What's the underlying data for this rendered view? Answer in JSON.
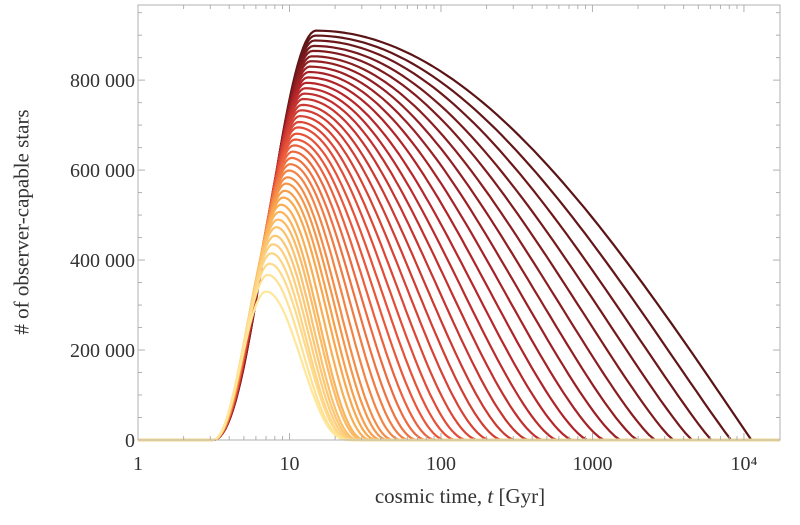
{
  "chart_data": {
    "type": "line",
    "title": "",
    "xlabel": {
      "prefix": "cosmic time, ",
      "var": "t",
      "suffix": " [Gyr]"
    },
    "ylabel": "# of observer-capable stars",
    "xscale": "log",
    "xlim": [
      1,
      17300
    ],
    "ylim": [
      0,
      967000
    ],
    "xticks": [
      1,
      10,
      100,
      1000,
      10000
    ],
    "xticklabels": [
      "1",
      "10",
      "100",
      "1000",
      "10⁴"
    ],
    "yticks": [
      0,
      200000,
      400000,
      600000,
      800000
    ],
    "yticklabels": [
      "0",
      "200 000",
      "400 000",
      "600 000",
      "800 000"
    ],
    "grid": false,
    "legend": "none",
    "frame_color": "#b0b0b0",
    "palette": [
      "#ffe79a",
      "#f9a94e",
      "#e8533a",
      "#b5252a",
      "#5a1416"
    ],
    "series_note_onset_t": 3.1,
    "series": [
      {
        "peak_t": 7.0,
        "peak_y": 330000,
        "end_t": 25
      },
      {
        "peak_t": 7.2,
        "peak_y": 367000,
        "end_t": 25
      },
      {
        "peak_t": 7.4,
        "peak_y": 392000,
        "end_t": 26
      },
      {
        "peak_t": 7.6,
        "peak_y": 415000,
        "end_t": 26
      },
      {
        "peak_t": 7.8,
        "peak_y": 435000,
        "end_t": 27
      },
      {
        "peak_t": 8.0,
        "peak_y": 454000,
        "end_t": 28
      },
      {
        "peak_t": 8.2,
        "peak_y": 473000,
        "end_t": 29
      },
      {
        "peak_t": 8.4,
        "peak_y": 490000,
        "end_t": 31
      },
      {
        "peak_t": 8.6,
        "peak_y": 507000,
        "end_t": 32
      },
      {
        "peak_t": 8.8,
        "peak_y": 523000,
        "end_t": 35
      },
      {
        "peak_t": 9.1,
        "peak_y": 539000,
        "end_t": 38
      },
      {
        "peak_t": 9.3,
        "peak_y": 554000,
        "end_t": 41
      },
      {
        "peak_t": 9.5,
        "peak_y": 570000,
        "end_t": 45
      },
      {
        "peak_t": 9.7,
        "peak_y": 584000,
        "end_t": 49
      },
      {
        "peak_t": 9.9,
        "peak_y": 599000,
        "end_t": 55
      },
      {
        "peak_t": 10.1,
        "peak_y": 613000,
        "end_t": 62
      },
      {
        "peak_t": 10.3,
        "peak_y": 627000,
        "end_t": 70
      },
      {
        "peak_t": 10.5,
        "peak_y": 641000,
        "end_t": 80
      },
      {
        "peak_t": 10.7,
        "peak_y": 655000,
        "end_t": 92
      },
      {
        "peak_t": 10.9,
        "peak_y": 668000,
        "end_t": 107
      },
      {
        "peak_t": 11.1,
        "peak_y": 681000,
        "end_t": 125
      },
      {
        "peak_t": 11.3,
        "peak_y": 695000,
        "end_t": 147
      },
      {
        "peak_t": 11.5,
        "peak_y": 707000,
        "end_t": 175
      },
      {
        "peak_t": 11.7,
        "peak_y": 720000,
        "end_t": 210
      },
      {
        "peak_t": 11.9,
        "peak_y": 733000,
        "end_t": 253
      },
      {
        "peak_t": 12.1,
        "peak_y": 745000,
        "end_t": 308
      },
      {
        "peak_t": 12.3,
        "peak_y": 758000,
        "end_t": 378
      },
      {
        "peak_t": 12.5,
        "peak_y": 770000,
        "end_t": 468
      },
      {
        "peak_t": 12.7,
        "peak_y": 782000,
        "end_t": 583
      },
      {
        "peak_t": 12.9,
        "peak_y": 794000,
        "end_t": 733
      },
      {
        "peak_t": 13.2,
        "peak_y": 806000,
        "end_t": 929
      },
      {
        "peak_t": 13.4,
        "peak_y": 818000,
        "end_t": 1190
      },
      {
        "peak_t": 13.6,
        "peak_y": 830000,
        "end_t": 1530
      },
      {
        "peak_t": 13.8,
        "peak_y": 842000,
        "end_t": 1980
      },
      {
        "peak_t": 14.0,
        "peak_y": 853000,
        "end_t": 2590
      },
      {
        "peak_t": 14.2,
        "peak_y": 865000,
        "end_t": 3420
      },
      {
        "peak_t": 14.4,
        "peak_y": 876000,
        "end_t": 4540
      },
      {
        "peak_t": 14.6,
        "peak_y": 888000,
        "end_t": 6090
      },
      {
        "peak_t": 14.8,
        "peak_y": 899000,
        "end_t": 8230
      },
      {
        "peak_t": 15.0,
        "peak_y": 910000,
        "end_t": 11200
      }
    ]
  }
}
